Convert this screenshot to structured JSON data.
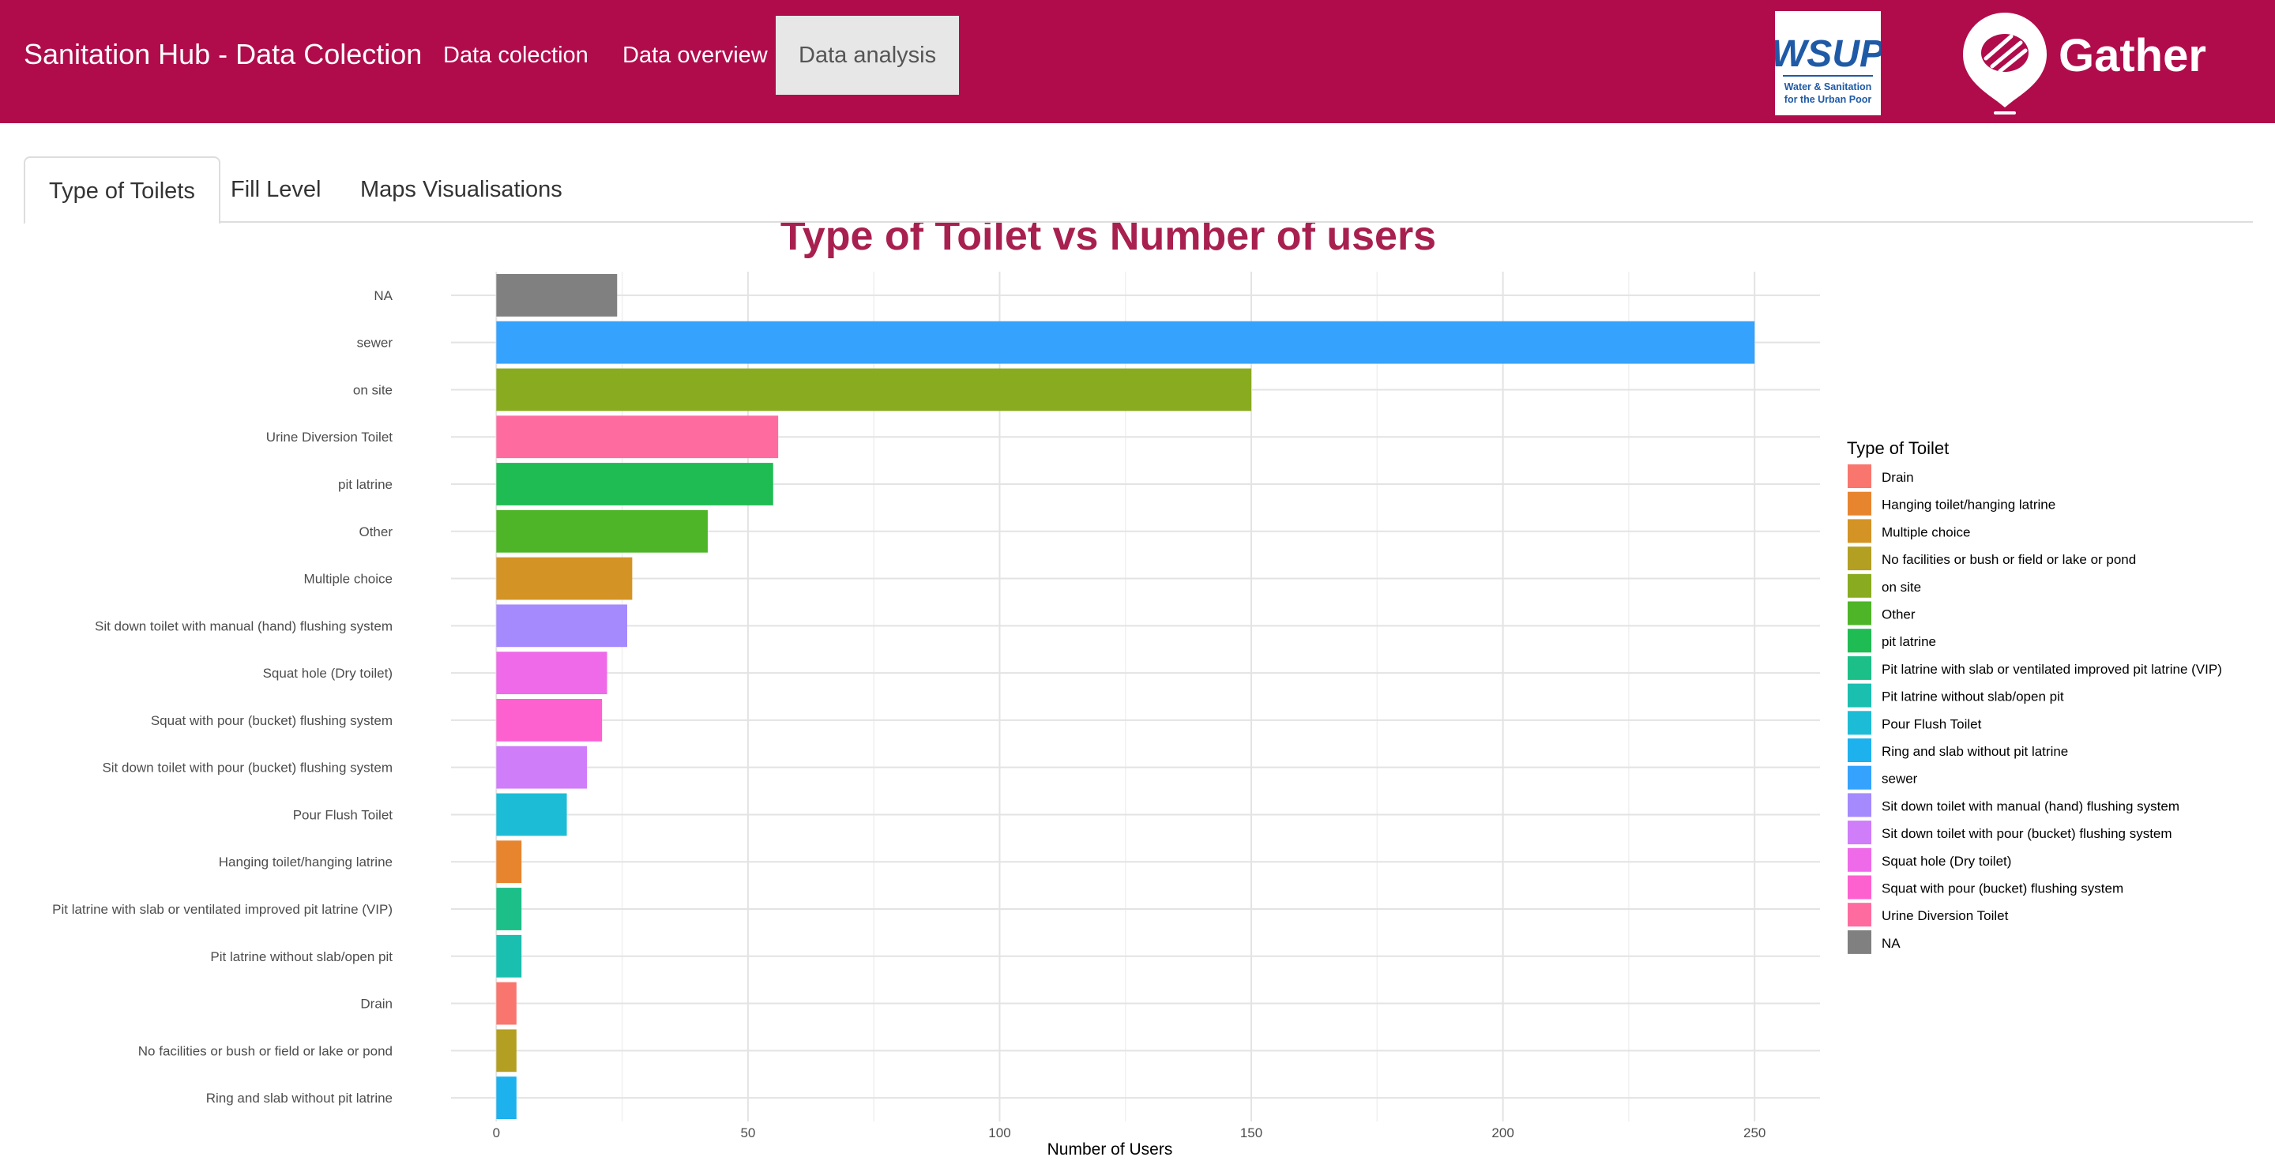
{
  "app": {
    "brand": "Sanitation Hub - Data Colection",
    "nav": [
      {
        "label": "Data colection"
      },
      {
        "label": "Data overview"
      },
      {
        "label": "Data analysis",
        "active": true
      }
    ],
    "logos": {
      "wsup": {
        "text": "WSUP",
        "subtext_1": "Water & Sanitation",
        "subtext_2": "for the Urban Poor"
      },
      "gather": {
        "text": "Gather"
      }
    },
    "colors": {
      "navbar": "#b00c4b",
      "active_nav_bg": "#e7e7e7",
      "title": "#a8204f"
    }
  },
  "tabs": [
    {
      "label": "Type of Toilets",
      "active": true
    },
    {
      "label": "Fill Level"
    },
    {
      "label": "Maps Visualisations"
    }
  ],
  "chart_data": {
    "type": "bar",
    "orientation": "horizontal",
    "title": "Type of Toilet vs Number of users",
    "xlabel": "Number of Users",
    "ylabel": "",
    "xlim": [
      -9,
      263
    ],
    "xticks": [
      0,
      50,
      100,
      150,
      200,
      250
    ],
    "grid": true,
    "legend_title": "Type of Toilet",
    "legend_position": "right",
    "categories": [
      "NA",
      "sewer",
      "on site",
      "Urine Diversion Toilet",
      "pit latrine",
      "Other",
      "Multiple choice",
      "Sit down toilet with manual (hand) flushing system",
      "Squat hole (Dry toilet)",
      "Squat with pour (bucket) flushing system",
      "Sit down toilet with pour (bucket) flushing system",
      "Pour Flush Toilet",
      "Hanging toilet/hanging latrine",
      "Pit latrine with slab or ventilated improved pit latrine (VIP)",
      "Pit latrine without slab/open pit",
      "Drain",
      "No facilities or bush or field or lake or pond",
      "Ring and slab without pit latrine"
    ],
    "values": [
      24,
      250,
      150,
      56,
      55,
      42,
      27,
      26,
      22,
      21,
      18,
      14,
      5,
      5,
      5,
      4,
      4,
      4
    ],
    "bar_colors": [
      "#808080",
      "#35a2fd",
      "#89ab1f",
      "#fe6c9f",
      "#1fbb53",
      "#4db527",
      "#d39325",
      "#a58afe",
      "#ee6ae9",
      "#fd61cf",
      "#d07dfa",
      "#1dbcd6",
      "#e7852f",
      "#1bbf87",
      "#1abfb0",
      "#f8766d",
      "#b39f22",
      "#1db1ee"
    ],
    "legend": [
      {
        "label": "Drain",
        "color": "#f8766d"
      },
      {
        "label": "Hanging toilet/hanging latrine",
        "color": "#e7852f"
      },
      {
        "label": "Multiple choice",
        "color": "#d39325"
      },
      {
        "label": "No facilities or bush or field or lake or pond",
        "color": "#b39f22"
      },
      {
        "label": "on site",
        "color": "#89ab1f"
      },
      {
        "label": "Other",
        "color": "#4db527"
      },
      {
        "label": "pit latrine",
        "color": "#1fbb53"
      },
      {
        "label": "Pit latrine with slab or ventilated improved pit latrine (VIP)",
        "color": "#1bbf87"
      },
      {
        "label": "Pit latrine without slab/open pit",
        "color": "#1abfb0"
      },
      {
        "label": "Pour Flush Toilet",
        "color": "#1dbcd6"
      },
      {
        "label": "Ring and slab without pit latrine",
        "color": "#1db1ee"
      },
      {
        "label": "sewer",
        "color": "#35a2fd"
      },
      {
        "label": "Sit down toilet with manual (hand) flushing system",
        "color": "#a58afe"
      },
      {
        "label": "Sit down toilet with pour (bucket) flushing system",
        "color": "#d07dfa"
      },
      {
        "label": "Squat hole (Dry toilet)",
        "color": "#ee6ae9"
      },
      {
        "label": "Squat with pour (bucket) flushing system",
        "color": "#fd61cf"
      },
      {
        "label": "Urine Diversion Toilet",
        "color": "#fe6c9f"
      },
      {
        "label": "NA",
        "color": "#808080"
      }
    ]
  }
}
